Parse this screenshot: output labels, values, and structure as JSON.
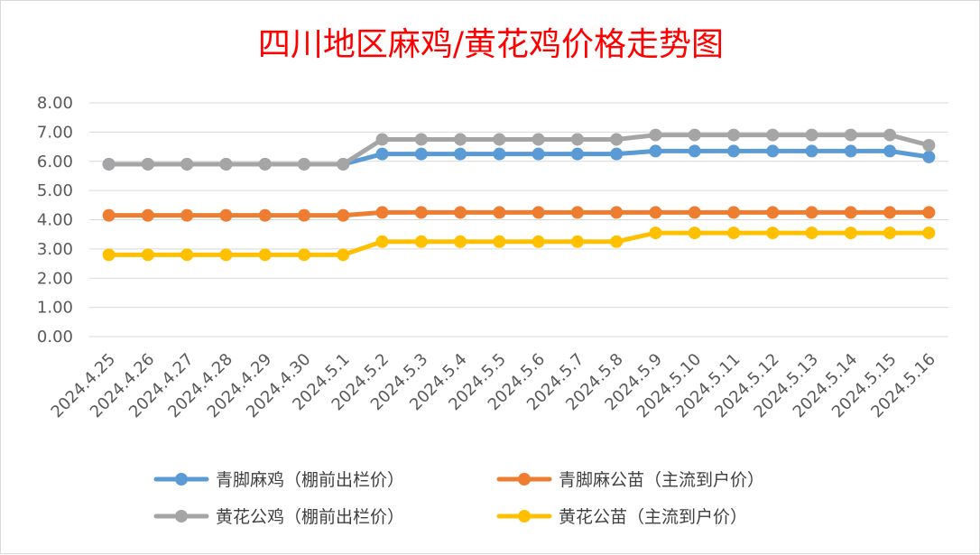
{
  "chart_data": {
    "type": "line",
    "title": "四川地区麻鸡/黄花鸡价格走势图",
    "xlabel": "",
    "ylabel": "",
    "ylim": [
      0,
      8
    ],
    "yticks": [
      "0.00",
      "1.00",
      "2.00",
      "3.00",
      "4.00",
      "5.00",
      "6.00",
      "7.00",
      "8.00"
    ],
    "grid": true,
    "legend_position": "bottom",
    "categories": [
      "2024.4.25",
      "2024.4.26",
      "2024.4.27",
      "2024.4.28",
      "2024.4.29",
      "2024.4.30",
      "2024.5.1",
      "2024.5.2",
      "2024.5.3",
      "2024.5.4",
      "2024.5.5",
      "2024.5.6",
      "2024.5.7",
      "2024.5.8",
      "2024.5.9",
      "2024.5.10",
      "2024.5.11",
      "2024.5.12",
      "2024.5.13",
      "2024.5.14",
      "2024.5.15",
      "2024.5.16"
    ],
    "series": [
      {
        "name": "青脚麻鸡（棚前出栏价）",
        "color": "#5b9bd5",
        "values": [
          5.9,
          5.9,
          5.9,
          5.9,
          5.9,
          5.9,
          5.9,
          6.25,
          6.25,
          6.25,
          6.25,
          6.25,
          6.25,
          6.25,
          6.35,
          6.35,
          6.35,
          6.35,
          6.35,
          6.35,
          6.35,
          6.15
        ]
      },
      {
        "name": "青脚麻公苗（主流到户价）",
        "color": "#ed7d31",
        "values": [
          4.15,
          4.15,
          4.15,
          4.15,
          4.15,
          4.15,
          4.15,
          4.25,
          4.25,
          4.25,
          4.25,
          4.25,
          4.25,
          4.25,
          4.25,
          4.25,
          4.25,
          4.25,
          4.25,
          4.25,
          4.25,
          4.25
        ]
      },
      {
        "name": "黄花公鸡（棚前出栏价）",
        "color": "#a5a5a5",
        "values": [
          5.9,
          5.9,
          5.9,
          5.9,
          5.9,
          5.9,
          5.9,
          6.75,
          6.75,
          6.75,
          6.75,
          6.75,
          6.75,
          6.75,
          6.9,
          6.9,
          6.9,
          6.9,
          6.9,
          6.9,
          6.9,
          6.55
        ]
      },
      {
        "name": "黄花公苗（主流到户价）",
        "color": "#ffc000",
        "values": [
          2.8,
          2.8,
          2.8,
          2.8,
          2.8,
          2.8,
          2.8,
          3.25,
          3.25,
          3.25,
          3.25,
          3.25,
          3.25,
          3.25,
          3.55,
          3.55,
          3.55,
          3.55,
          3.55,
          3.55,
          3.55,
          3.55
        ]
      }
    ]
  }
}
